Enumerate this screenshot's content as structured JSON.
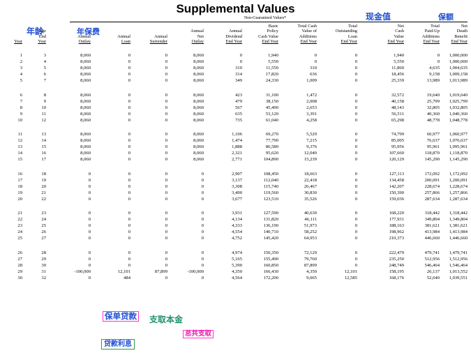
{
  "title": "Supplemental Values",
  "subtitle": "Non-Guaranteed Values*",
  "annotations": {
    "age_cn": "年龄",
    "premium_cn": "年保费",
    "cash_value_cn": "现金值",
    "sum_insured_cn": "保额",
    "policy_loan_cn": "保单贷款",
    "withdraw_principal_cn": "支取本金",
    "total_withdraw_cn": "总共支取",
    "loan_interest_cn": "贷款利息"
  },
  "headers": {
    "year": [
      "",
      "",
      "",
      "Year"
    ],
    "age": [
      "",
      "Age",
      "End",
      "Year"
    ],
    "outlay": [
      "",
      "",
      "Annual",
      "Outlay"
    ],
    "loan": [
      "",
      "",
      "Annual",
      "Loan"
    ],
    "surrender": [
      "",
      "",
      "Annual",
      "Surrender"
    ],
    "net_outlay": [
      "",
      "Annual",
      "Net",
      "Outlay"
    ],
    "dividend": [
      "",
      "Annual",
      "Dividend",
      "End Year"
    ],
    "basic_cv": [
      "Basic",
      "Policy",
      "Cash Value",
      "End Year"
    ],
    "additions_cv": [
      "Total Cash",
      "Value of",
      "Additions",
      "End Year"
    ],
    "outstanding_loan": [
      "Total",
      "Outstanding",
      "Loan",
      "End Year"
    ],
    "net_cv": [
      "Net",
      "Cash",
      "Value",
      "End Year"
    ],
    "paid_up": [
      "Total",
      "Paid-Up",
      "Additions",
      "End Year"
    ],
    "death_benefit": [
      "Net",
      "Death",
      "Benefit",
      "End Year"
    ]
  },
  "rows": [
    [
      "1",
      "3",
      "8,060",
      "0",
      "0",
      "8,060",
      "0",
      "1,940",
      "0",
      "0",
      "1,940",
      "0",
      "1,000,000"
    ],
    [
      "2",
      "4",
      "8,060",
      "0",
      "0",
      "8,060",
      "0",
      "5,550",
      "0",
      "0",
      "5,550",
      "0",
      "1,000,000"
    ],
    [
      "3",
      "5",
      "8,060",
      "0",
      "0",
      "8,060",
      "310",
      "11,550",
      "310",
      "0",
      "11,860",
      "4,635",
      "1,004,635"
    ],
    [
      "4",
      "6",
      "8,060",
      "0",
      "0",
      "8,060",
      "314",
      "17,820",
      "636",
      "0",
      "18,456",
      "9,158",
      "1,009,158"
    ],
    [
      "5",
      "7",
      "8,060",
      "0",
      "0",
      "8,060",
      "349",
      "24,330",
      "1,009",
      "0",
      "25,339",
      "13,989",
      "1,013,989"
    ],
    [
      "6",
      "8",
      "8,060",
      "0",
      "0",
      "8,060",
      "423",
      "31,100",
      "1,472",
      "0",
      "32,572",
      "19,640",
      "1,019,640"
    ],
    [
      "7",
      "9",
      "8,060",
      "0",
      "0",
      "8,060",
      "479",
      "38,150",
      "2,008",
      "0",
      "40,158",
      "25,799",
      "1,025,799"
    ],
    [
      "8",
      "10",
      "8,060",
      "0",
      "0",
      "8,060",
      "567",
      "45,490",
      "2,653",
      "0",
      "48,143",
      "32,805",
      "1,032,805"
    ],
    [
      "9",
      "11",
      "8,060",
      "0",
      "0",
      "8,060",
      "635",
      "53,120",
      "3,391",
      "0",
      "56,511",
      "40,360",
      "1,040,360"
    ],
    [
      "10",
      "12",
      "8,060",
      "0",
      "0",
      "8,060",
      "735",
      "61,040",
      "4,258",
      "0",
      "65,298",
      "48,778",
      "1,048,778"
    ],
    [
      "11",
      "13",
      "8,060",
      "0",
      "0",
      "8,060",
      "1,106",
      "69,270",
      "5,529",
      "0",
      "74,799",
      "60,977",
      "1,060,977"
    ],
    [
      "12",
      "14",
      "8,060",
      "0",
      "0",
      "8,060",
      "1,474",
      "77,790",
      "7,215",
      "0",
      "85,005",
      "76,637",
      "1,076,637"
    ],
    [
      "13",
      "15",
      "8,060",
      "0",
      "0",
      "8,060",
      "1,888",
      "86,580",
      "9,376",
      "0",
      "95,956",
      "95,961",
      "1,095,961"
    ],
    [
      "14",
      "16",
      "8,060",
      "0",
      "0",
      "8,060",
      "2,321",
      "95,620",
      "12,040",
      "0",
      "107,660",
      "118,870",
      "1,118,870"
    ],
    [
      "15",
      "17",
      "8,060",
      "0",
      "0",
      "8,060",
      "2,771",
      "104,890",
      "15,239",
      "0",
      "120,129",
      "145,290",
      "1,145,290"
    ],
    [
      "16",
      "18",
      "0",
      "0",
      "0",
      "0",
      "2,907",
      "108,450",
      "18,663",
      "0",
      "127,113",
      "172,092",
      "1,172,092"
    ],
    [
      "17",
      "19",
      "0",
      "0",
      "0",
      "0",
      "3,137",
      "112,040",
      "22,418",
      "0",
      "134,458",
      "200,091",
      "1,200,091"
    ],
    [
      "18",
      "20",
      "0",
      "0",
      "0",
      "0",
      "3,308",
      "115,740",
      "26,467",
      "0",
      "142,207",
      "228,674",
      "1,228,674"
    ],
    [
      "19",
      "21",
      "0",
      "0",
      "0",
      "0",
      "3,490",
      "119,560",
      "30,830",
      "0",
      "150,390",
      "257,866",
      "1,257,866"
    ],
    [
      "20",
      "22",
      "0",
      "0",
      "0",
      "0",
      "3,677",
      "123,510",
      "35,526",
      "0",
      "159,036",
      "287,634",
      "1,287,634"
    ],
    [
      "21",
      "23",
      "0",
      "0",
      "0",
      "0",
      "3,931",
      "127,590",
      "40,630",
      "0",
      "168,220",
      "318,442",
      "1,318,442"
    ],
    [
      "22",
      "24",
      "0",
      "0",
      "0",
      "0",
      "4,134",
      "131,820",
      "46,111",
      "0",
      "177,931",
      "349,804",
      "1,349,804"
    ],
    [
      "23",
      "25",
      "0",
      "0",
      "0",
      "0",
      "4,333",
      "136,190",
      "51,973",
      "0",
      "188,163",
      "381,621",
      "1,381,621"
    ],
    [
      "24",
      "26",
      "0",
      "0",
      "0",
      "0",
      "4,554",
      "140,710",
      "58,252",
      "0",
      "198,962",
      "413,984",
      "1,413,984"
    ],
    [
      "25",
      "27",
      "0",
      "0",
      "0",
      "0",
      "4,752",
      "145,420",
      "64,953",
      "0",
      "210,373",
      "446,660",
      "1,446,660"
    ],
    [
      "26",
      "28",
      "0",
      "0",
      "0",
      "0",
      "4,974",
      "150,350",
      "72,129",
      "0",
      "222,479",
      "479,741",
      "1,479,741"
    ],
    [
      "27",
      "29",
      "0",
      "0",
      "0",
      "0",
      "5,165",
      "155,490",
      "79,760",
      "0",
      "235,250",
      "512,956",
      "1,512,956"
    ],
    [
      "28",
      "30",
      "0",
      "0",
      "0",
      "0",
      "5,390",
      "160,850",
      "87,899",
      "0",
      "248,749",
      "546,464",
      "1,546,464"
    ],
    [
      "29",
      "31",
      "-100,000",
      "12,101",
      "87,899",
      "-100,000",
      "4,350",
      "166,430",
      "4,350",
      "12,101",
      "158,195",
      "26,137",
      "1,013,552"
    ],
    [
      "30",
      "32",
      "0",
      "484",
      "0",
      "0",
      "4,564",
      "172,200",
      "9,065",
      "12,585",
      "168,176",
      "52,640",
      "1,039,551"
    ]
  ]
}
